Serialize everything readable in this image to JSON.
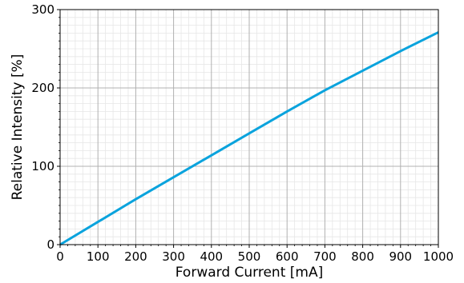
{
  "chart_data": {
    "type": "line",
    "xlabel": "Forward Current [mA]",
    "ylabel": "Relative Intensity [%]",
    "xlim": [
      0,
      1000
    ],
    "ylim": [
      0,
      300
    ],
    "xticks": [
      0,
      100,
      200,
      300,
      400,
      500,
      600,
      700,
      800,
      900,
      1000
    ],
    "yticks": [
      0,
      100,
      200,
      300
    ],
    "grid": true,
    "minor_grid": true,
    "line_color": "#0aa3dd",
    "series": [
      {
        "x": [
          0,
          100,
          200,
          300,
          400,
          500,
          600,
          700,
          800,
          900,
          1000
        ],
        "y": [
          0,
          29,
          58,
          86,
          114,
          142,
          170,
          197,
          222,
          247,
          271
        ]
      }
    ]
  }
}
